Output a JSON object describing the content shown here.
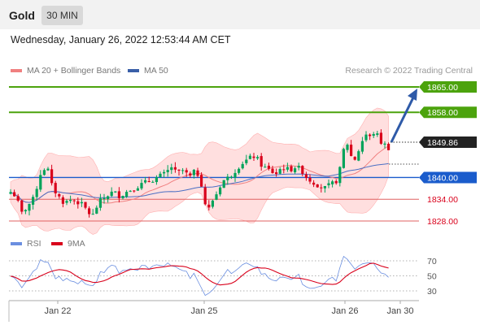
{
  "header": {
    "asset": "Gold",
    "timeframe": "30 MIN"
  },
  "datetime": "Wednesday, January 26, 2022 12:53:44 AM CET",
  "legend": {
    "bollinger": "MA 20 + Bollinger Bands",
    "ma50": "MA 50",
    "rsi": "RSI",
    "rsi_ma": "9MA"
  },
  "credit": "Research © 2022 Trading Central",
  "colors": {
    "bull": "#00a35a",
    "bear": "#d9001b",
    "band": "#ffd4d4",
    "ma20": "#f08080",
    "ma50": "#4a6fc4",
    "green_level": "#4ca30d",
    "blue_level": "#1a5ccc",
    "red_level": "#e06060",
    "arrow": "#2e5aa8",
    "rsi": "#6b8fe0",
    "rsi_ma": "#d9001b"
  },
  "chart_data": {
    "type": "candlestick",
    "y_range": [
      1825,
      1868
    ],
    "x_labels": [
      "Jan 22",
      "Jan 25",
      "Jan 26",
      "Jan 30"
    ],
    "current_price": "1849.86",
    "levels": [
      {
        "label": "1865.00",
        "value": 1865,
        "style": "green"
      },
      {
        "label": "1858.00",
        "value": 1858,
        "style": "green"
      },
      {
        "label": "1840.00",
        "value": 1840,
        "style": "blue"
      },
      {
        "label": "1834.00",
        "value": 1834,
        "style": "red"
      },
      {
        "label": "1828.00",
        "value": 1828,
        "style": "red"
      }
    ],
    "arrow_target": 1865,
    "rsi": {
      "levels": [
        70,
        50,
        30
      ],
      "range": [
        10,
        85
      ]
    }
  }
}
